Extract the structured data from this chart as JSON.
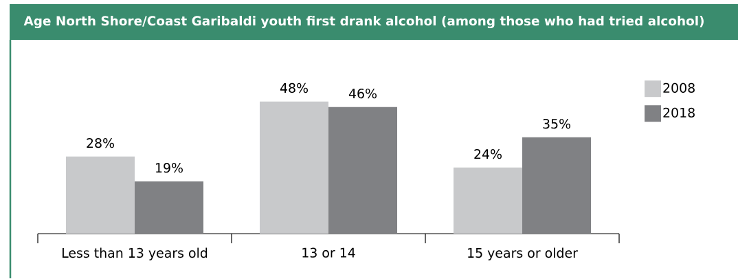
{
  "chart_data": {
    "type": "bar",
    "title": "Age North Shore/Coast Garibaldi youth first drank alcohol (among those who had tried alcohol)",
    "categories": [
      "Less than 13 years old",
      "13 or 14",
      "15 years or older"
    ],
    "series": [
      {
        "name": "2008",
        "color": "#c8c9cb",
        "values": [
          28,
          48,
          24
        ],
        "value_labels": [
          "28%",
          "48%",
          "24%"
        ]
      },
      {
        "name": "2018",
        "color": "#808184",
        "values": [
          19,
          46,
          35
        ],
        "value_labels": [
          "19%",
          "46%",
          "35%"
        ]
      }
    ],
    "legend": "top right"
  }
}
